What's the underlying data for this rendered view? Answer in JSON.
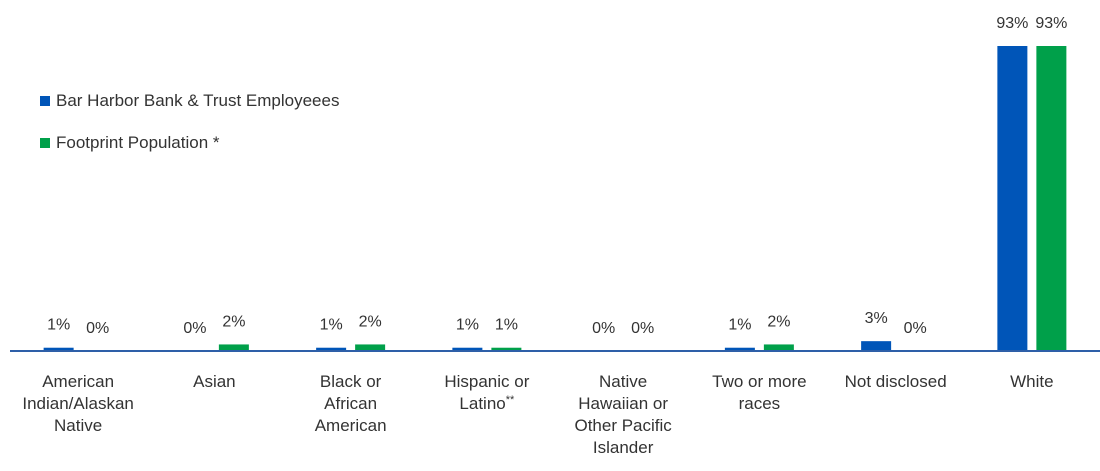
{
  "chart_data": {
    "type": "bar",
    "title": "",
    "xlabel": "",
    "ylabel": "",
    "ylim": [
      0,
      100
    ],
    "categories": [
      [
        "American",
        "Indian/Alaskan",
        "Native"
      ],
      [
        "Asian"
      ],
      [
        "Black or",
        "African",
        "American"
      ],
      [
        "Hispanic or",
        "Latino**"
      ],
      [
        "Native",
        "Hawaiian or",
        "Other Pacific",
        "Islander"
      ],
      [
        "Two or more",
        "races"
      ],
      [
        "Not disclosed"
      ],
      [
        "White"
      ]
    ],
    "series": [
      {
        "name": "Bar Harbor Bank & Trust Employeees",
        "color": "#0055B8",
        "values": [
          1,
          0,
          1,
          1,
          0,
          1,
          3,
          93
        ],
        "labels": [
          "1%",
          "0%",
          "1%",
          "1%",
          "0%",
          "1%",
          "3%",
          "93%"
        ]
      },
      {
        "name": "Footprint Population *",
        "color": "#00A04A",
        "values": [
          0,
          2,
          2,
          1,
          0,
          2,
          0,
          93
        ],
        "labels": [
          "0%",
          "2%",
          "2%",
          "1%",
          "0%",
          "2%",
          "0%",
          "93%"
        ]
      }
    ],
    "legend_position": "top-left",
    "grid": false,
    "axis_color": "#2E5FA8"
  }
}
